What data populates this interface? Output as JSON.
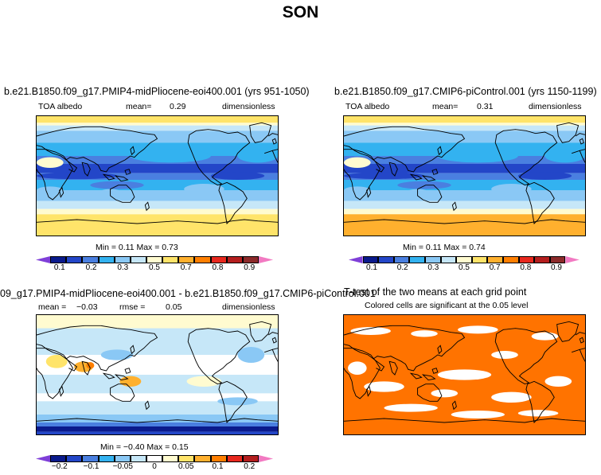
{
  "figure": {
    "season": "SON"
  },
  "panels": {
    "p1": {
      "title": "b.e21.B1850.f09_g17.PMIP4-midPliocene-eoi400.001 (yrs 951-1050)",
      "variable": "TOA albedo",
      "mean_label": "mean=",
      "mean_value": "0.29",
      "units": "dimensionless",
      "minmax": "Min =   0.11  Max =   0.73",
      "colorbar_ticks": [
        "0.1",
        "0.2",
        "0.3",
        "0.5",
        "0.7",
        "0.8",
        "0.9"
      ]
    },
    "p2": {
      "title": "b.e21.B1850.f09_g17.CMIP6-piControl.001 (yrs 1150-1199)",
      "variable": "TOA albedo",
      "mean_label": "mean=",
      "mean_value": "0.31",
      "units": "dimensionless",
      "minmax": "Min =   0.11  Max =   0.74",
      "colorbar_ticks": [
        "0.1",
        "0.2",
        "0.3",
        "0.5",
        "0.7",
        "0.8",
        "0.9"
      ]
    },
    "p3": {
      "title": "09_g17.PMIP4-midPliocene-eoi400.001 - b.e21.B1850.f09_g17.CMIP6-piControl.001",
      "mean_label": "mean =",
      "mean_value": "−0.03",
      "rmse_label": "rmse =",
      "rmse_value": "0.05",
      "units": "dimensionless",
      "minmax": "Min =  −0.40  Max =   0.15",
      "colorbar_ticks": [
        "−0.2",
        "−0.1",
        "−0.05",
        "0",
        "0.05",
        "0.1",
        "0.2"
      ]
    },
    "p4": {
      "title": "T-test of the two means at each grid point",
      "subtitle": "Colored cells are significant at the 0.05 level"
    }
  },
  "colors": {
    "abs_scale": [
      "#7f3fd8",
      "#0a1a8c",
      "#2346c8",
      "#4a7fe0",
      "#33b2f0",
      "#8ac8f5",
      "#c6e7f8",
      "#fffbd0",
      "#ffe46a",
      "#ffb02e",
      "#ff7f00",
      "#e8281e",
      "#b41e1e",
      "#8c2a2a",
      "#f27ac2"
    ],
    "diff_scale": [
      "#7f3fd8",
      "#0a1a8c",
      "#2346c8",
      "#4a7fe0",
      "#33b2f0",
      "#8ac8f5",
      "#c6e7f8",
      "#ffffff",
      "#fffbd0",
      "#ffe46a",
      "#ffb02e",
      "#ff7f00",
      "#e8281e",
      "#b41e1e",
      "#f27ac2"
    ],
    "ttest_fill": "#ff7300"
  }
}
